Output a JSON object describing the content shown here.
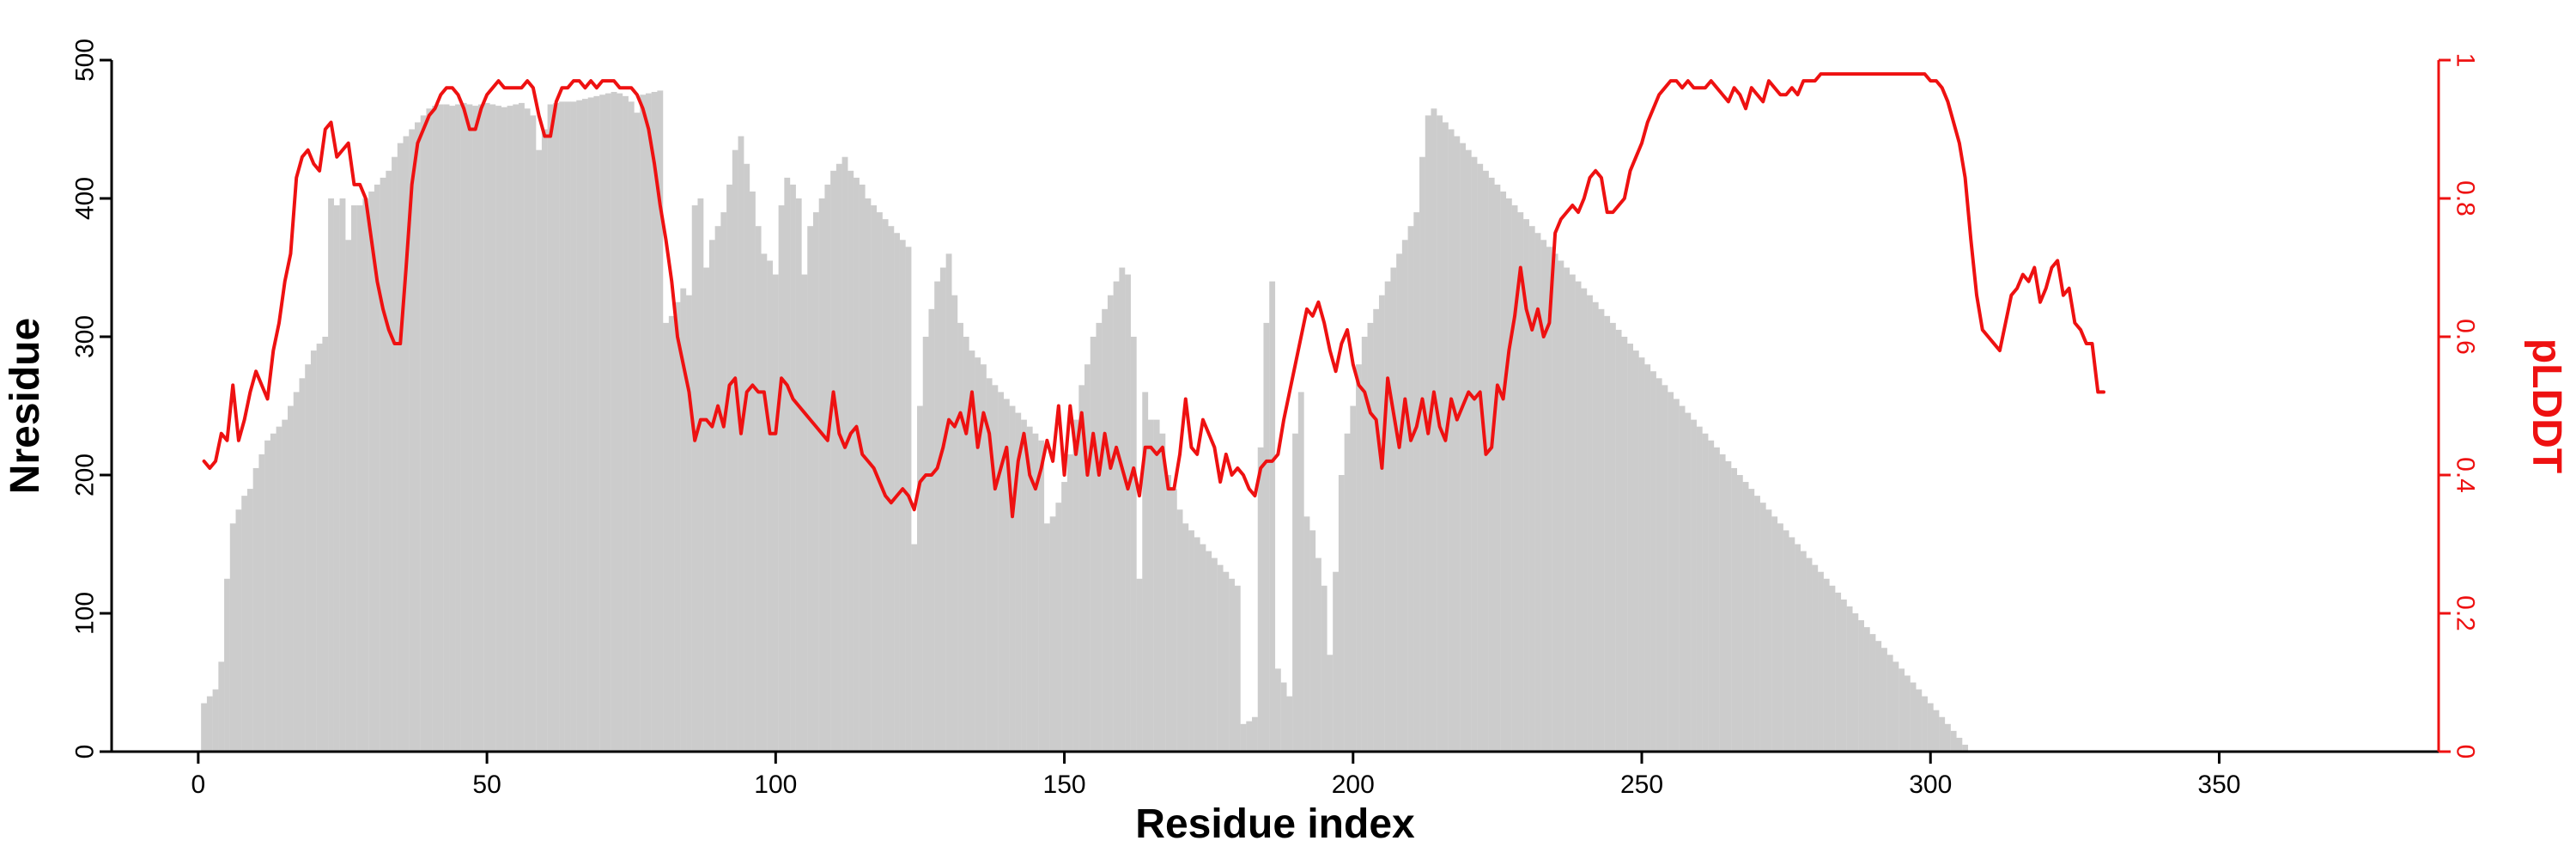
{
  "chart_data": {
    "type": "bar",
    "xlabel": "Residue index",
    "ylabel": "Nresidue",
    "y2label": "pLDDT",
    "xlim": [
      -15,
      388
    ],
    "ylim": [
      0,
      500
    ],
    "y2lim": [
      0,
      1
    ],
    "xticks": [
      0,
      50,
      100,
      150,
      200,
      250,
      300,
      350
    ],
    "yticks": [
      0,
      100,
      200,
      300,
      400,
      500
    ],
    "y2ticks": [
      0,
      0.2,
      0.4,
      0.6,
      0.8,
      1
    ],
    "colors": {
      "bars": "#cccccc",
      "line": "#ee1111",
      "axis": "#000000"
    },
    "grid": false,
    "series": [
      {
        "type": "bar",
        "axis": "left",
        "x_start": 1,
        "values": [
          35,
          40,
          45,
          65,
          125,
          165,
          175,
          185,
          190,
          205,
          215,
          225,
          230,
          235,
          240,
          250,
          260,
          270,
          280,
          290,
          295,
          300,
          400,
          395,
          400,
          370,
          395,
          395,
          400,
          405,
          410,
          415,
          420,
          430,
          440,
          445,
          450,
          455,
          460,
          465,
          467,
          468,
          468,
          467,
          468,
          469,
          468,
          467,
          468,
          469,
          468,
          467,
          466,
          467,
          468,
          469,
          465,
          460,
          435,
          450,
          468,
          469,
          470,
          470,
          470,
          471,
          472,
          473,
          474,
          475,
          476,
          477,
          476,
          474,
          470,
          462,
          475,
          476,
          477,
          478,
          310,
          315,
          325,
          335,
          330,
          395,
          400,
          350,
          370,
          380,
          390,
          410,
          435,
          445,
          425,
          405,
          380,
          360,
          355,
          345,
          395,
          415,
          410,
          400,
          345,
          380,
          390,
          400,
          410,
          420,
          425,
          430,
          420,
          415,
          410,
          400,
          395,
          390,
          385,
          380,
          375,
          370,
          365,
          150,
          250,
          300,
          320,
          340,
          350,
          360,
          330,
          310,
          300,
          290,
          285,
          280,
          270,
          265,
          260,
          255,
          250,
          245,
          240,
          235,
          230,
          225,
          165,
          170,
          180,
          195,
          215,
          240,
          265,
          280,
          300,
          310,
          320,
          330,
          340,
          350,
          345,
          300,
          125,
          260,
          240,
          240,
          230,
          200,
          190,
          175,
          165,
          160,
          155,
          150,
          145,
          140,
          135,
          130,
          125,
          120,
          20,
          22,
          25,
          220,
          310,
          340,
          60,
          50,
          40,
          230,
          260,
          170,
          160,
          140,
          120,
          70,
          130,
          200,
          230,
          250,
          280,
          300,
          310,
          320,
          330,
          340,
          350,
          360,
          370,
          380,
          390,
          430,
          460,
          465,
          460,
          455,
          450,
          445,
          440,
          435,
          430,
          425,
          420,
          415,
          410,
          405,
          400,
          395,
          390,
          385,
          380,
          375,
          370,
          365,
          360,
          355,
          350,
          345,
          340,
          335,
          330,
          325,
          320,
          315,
          310,
          305,
          300,
          295,
          290,
          285,
          280,
          275,
          270,
          265,
          260,
          255,
          250,
          245,
          240,
          235,
          230,
          225,
          220,
          215,
          210,
          205,
          200,
          195,
          190,
          185,
          180,
          175,
          170,
          165,
          160,
          155,
          150,
          145,
          140,
          135,
          130,
          125,
          120,
          115,
          110,
          105,
          100,
          95,
          90,
          85,
          80,
          75,
          70,
          65,
          60,
          55,
          50,
          45,
          40,
          35,
          30,
          25,
          20,
          15,
          10,
          5
        ]
      },
      {
        "type": "line",
        "axis": "right",
        "x_start": 1,
        "values": [
          0.42,
          0.41,
          0.42,
          0.46,
          0.45,
          0.53,
          0.45,
          0.48,
          0.52,
          0.55,
          0.53,
          0.51,
          0.58,
          0.62,
          0.68,
          0.72,
          0.83,
          0.86,
          0.87,
          0.85,
          0.84,
          0.9,
          0.91,
          0.86,
          0.87,
          0.88,
          0.82,
          0.82,
          0.8,
          0.74,
          0.68,
          0.64,
          0.61,
          0.59,
          0.59,
          0.7,
          0.82,
          0.88,
          0.9,
          0.92,
          0.93,
          0.95,
          0.96,
          0.96,
          0.95,
          0.93,
          0.9,
          0.9,
          0.93,
          0.95,
          0.96,
          0.97,
          0.96,
          0.96,
          0.96,
          0.96,
          0.97,
          0.96,
          0.92,
          0.89,
          0.89,
          0.94,
          0.96,
          0.96,
          0.97,
          0.97,
          0.96,
          0.97,
          0.96,
          0.97,
          0.97,
          0.97,
          0.96,
          0.96,
          0.96,
          0.95,
          0.93,
          0.9,
          0.85,
          0.79,
          0.74,
          0.68,
          0.6,
          0.56,
          0.52,
          0.45,
          0.48,
          0.48,
          0.47,
          0.5,
          0.47,
          0.53,
          0.54,
          0.46,
          0.52,
          0.53,
          0.52,
          0.52,
          0.46,
          0.46,
          0.54,
          0.53,
          0.51,
          0.5,
          0.49,
          0.48,
          0.47,
          0.46,
          0.45,
          0.52,
          0.46,
          0.44,
          0.46,
          0.47,
          0.43,
          0.42,
          0.41,
          0.39,
          0.37,
          0.36,
          0.37,
          0.38,
          0.37,
          0.35,
          0.39,
          0.4,
          0.4,
          0.41,
          0.44,
          0.48,
          0.47,
          0.49,
          0.46,
          0.52,
          0.44,
          0.49,
          0.46,
          0.38,
          0.41,
          0.44,
          0.34,
          0.42,
          0.46,
          0.4,
          0.38,
          0.41,
          0.45,
          0.42,
          0.5,
          0.4,
          0.5,
          0.43,
          0.49,
          0.4,
          0.46,
          0.4,
          0.46,
          0.41,
          0.44,
          0.41,
          0.38,
          0.41,
          0.37,
          0.44,
          0.44,
          0.43,
          0.44,
          0.38,
          0.38,
          0.43,
          0.51,
          0.44,
          0.43,
          0.48,
          0.46,
          0.44,
          0.39,
          0.43,
          0.4,
          0.41,
          0.4,
          0.38,
          0.37,
          0.41,
          0.42,
          0.42,
          0.43,
          0.48,
          0.52,
          0.56,
          0.6,
          0.64,
          0.63,
          0.65,
          0.62,
          0.58,
          0.55,
          0.59,
          0.61,
          0.56,
          0.53,
          0.52,
          0.49,
          0.48,
          0.41,
          0.54,
          0.49,
          0.44,
          0.51,
          0.45,
          0.47,
          0.51,
          0.46,
          0.52,
          0.47,
          0.45,
          0.51,
          0.48,
          0.5,
          0.52,
          0.51,
          0.52,
          0.43,
          0.44,
          0.53,
          0.51,
          0.58,
          0.63,
          0.7,
          0.64,
          0.61,
          0.64,
          0.6,
          0.62,
          0.75,
          0.77,
          0.78,
          0.79,
          0.78,
          0.8,
          0.83,
          0.84,
          0.83,
          0.78,
          0.78,
          0.79,
          0.8,
          0.84,
          0.86,
          0.88,
          0.91,
          0.93,
          0.95,
          0.96,
          0.97,
          0.97,
          0.96,
          0.97,
          0.96,
          0.96,
          0.96,
          0.97,
          0.96,
          0.95,
          0.94,
          0.96,
          0.95,
          0.93,
          0.96,
          0.95,
          0.94,
          0.97,
          0.96,
          0.95,
          0.95,
          0.96,
          0.95,
          0.97,
          0.97,
          0.97,
          0.98,
          0.98,
          0.98,
          0.98,
          0.98,
          0.98,
          0.98,
          0.98,
          0.98,
          0.98,
          0.98,
          0.98,
          0.98,
          0.98,
          0.98,
          0.98,
          0.98,
          0.98,
          0.98,
          0.97,
          0.97,
          0.96,
          0.94,
          0.91,
          0.88,
          0.83,
          0.74,
          0.66,
          0.61,
          0.6,
          0.59,
          0.58,
          0.62,
          0.66,
          0.67,
          0.69,
          0.68,
          0.7,
          0.65,
          0.67,
          0.7,
          0.71,
          0.66,
          0.67,
          0.62,
          0.61,
          0.59,
          0.59,
          0.52,
          0.52
        ]
      }
    ]
  }
}
